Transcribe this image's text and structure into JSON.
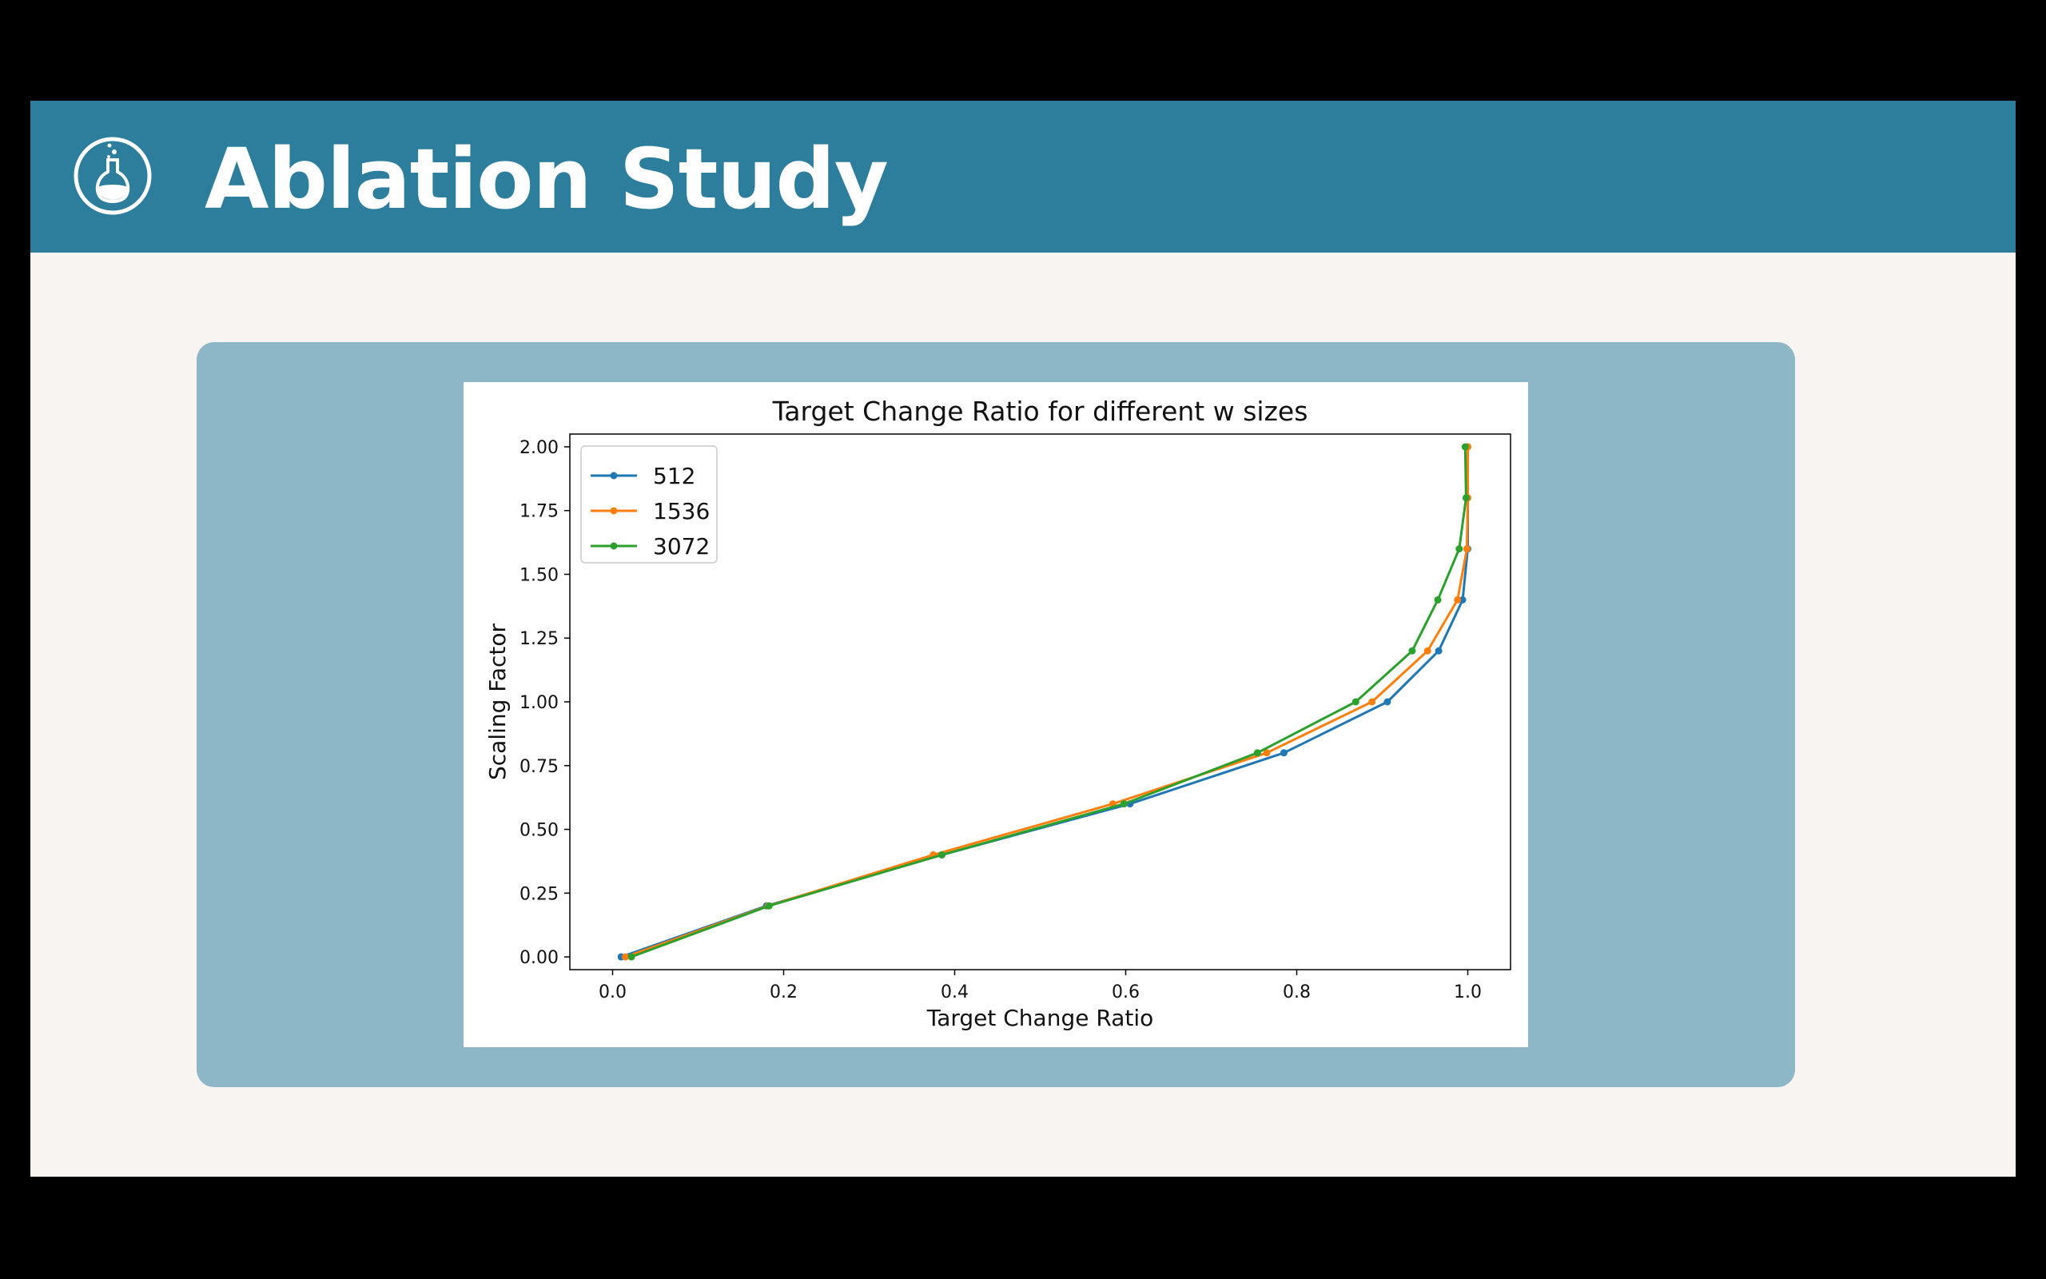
{
  "slide": {
    "title": "Ablation Study",
    "header_icon": "flask-icon",
    "colors": {
      "header_bg": "#2d7e9d",
      "slide_bg": "#f8f4f1",
      "panel_bg": "#8db6c6",
      "frame_bg": "#000000"
    }
  },
  "chart_data": {
    "type": "line",
    "title": "Target Change Ratio for different w sizes",
    "xlabel": "Target Change Ratio",
    "ylabel": "Scaling Factor",
    "xlim": [
      -0.05,
      1.05
    ],
    "ylim": [
      -0.05,
      2.05
    ],
    "xticks": [
      "0.0",
      "0.2",
      "0.4",
      "0.6",
      "0.8",
      "1.0"
    ],
    "yticks": [
      "0.00",
      "0.25",
      "0.50",
      "0.75",
      "1.00",
      "1.25",
      "1.50",
      "1.75",
      "2.00"
    ],
    "legend_position": "top-left",
    "grid": false,
    "series": [
      {
        "name": "512",
        "color": "#1f77b4",
        "x": [
          0.01,
          0.18,
          0.385,
          0.605,
          0.785,
          0.906,
          0.966,
          0.994,
          1.0,
          1.0,
          1.0
        ],
        "y": [
          0.0,
          0.2,
          0.4,
          0.6,
          0.8,
          1.0,
          1.2,
          1.4,
          1.6,
          1.8,
          2.0
        ]
      },
      {
        "name": "1536",
        "color": "#ff7f0e",
        "x": [
          0.015,
          0.182,
          0.375,
          0.585,
          0.765,
          0.888,
          0.953,
          0.988,
          0.999,
          1.0,
          1.0
        ],
        "y": [
          0.0,
          0.2,
          0.4,
          0.6,
          0.8,
          1.0,
          1.2,
          1.4,
          1.6,
          1.8,
          2.0
        ]
      },
      {
        "name": "3072",
        "color": "#2ca02c",
        "x": [
          0.022,
          0.183,
          0.385,
          0.598,
          0.754,
          0.869,
          0.935,
          0.965,
          0.99,
          0.998,
          0.997
        ],
        "y": [
          0.0,
          0.2,
          0.4,
          0.6,
          0.8,
          1.0,
          1.2,
          1.4,
          1.6,
          1.8,
          2.0
        ]
      }
    ]
  }
}
